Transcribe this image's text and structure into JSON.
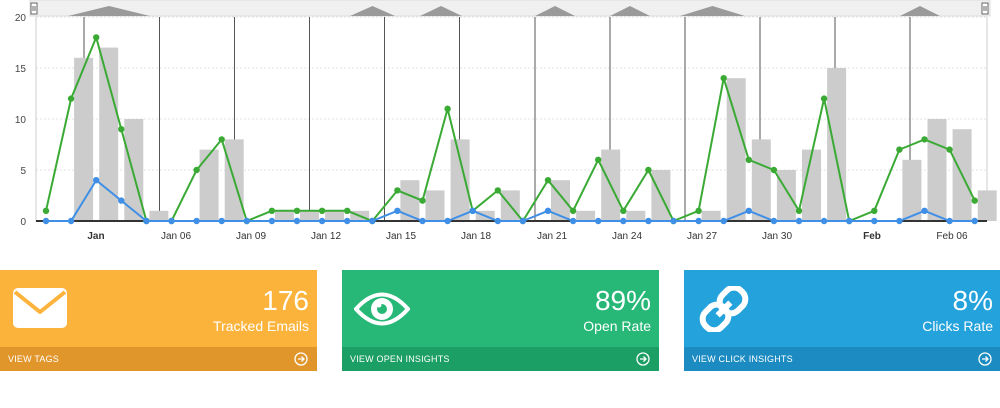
{
  "chart_data": {
    "type": "bar",
    "ylim": [
      0,
      20
    ],
    "yticks": [
      0,
      5,
      10,
      15,
      20
    ],
    "xtick_labels": [
      {
        "label": "Jan",
        "bold": true
      },
      {
        "label": "Jan 06",
        "bold": false
      },
      {
        "label": "Jan 09",
        "bold": false
      },
      {
        "label": "Jan 12",
        "bold": false
      },
      {
        "label": "Jan 15",
        "bold": false
      },
      {
        "label": "Jan 18",
        "bold": false
      },
      {
        "label": "Jan 21",
        "bold": false
      },
      {
        "label": "Jan 24",
        "bold": false
      },
      {
        "label": "Jan 27",
        "bold": false
      },
      {
        "label": "Jan 30",
        "bold": false
      },
      {
        "label": "Feb",
        "bold": true
      },
      {
        "label": "Feb 06",
        "bold": false
      }
    ],
    "series": [
      {
        "values": [
          0,
          16,
          17,
          10,
          1,
          0,
          7,
          8,
          0,
          1,
          1,
          1,
          1,
          0,
          4,
          3,
          8,
          1,
          3,
          0,
          4,
          1,
          7,
          1,
          5,
          0,
          1,
          14,
          8,
          5,
          7,
          15,
          0,
          0,
          6,
          10,
          9,
          3
        ]
      },
      {
        "values": [
          1,
          12,
          18,
          9,
          0,
          0,
          5,
          8,
          0,
          1,
          1,
          1,
          1,
          0,
          3,
          2,
          11,
          1,
          3,
          0,
          4,
          1,
          6,
          1,
          5,
          0,
          1,
          14,
          6,
          5,
          1,
          12,
          0,
          1,
          7,
          8,
          7,
          2
        ]
      },
      {
        "values": [
          0,
          0,
          4,
          2,
          0,
          0,
          0,
          0,
          0,
          0,
          0,
          0,
          0,
          0,
          1,
          0,
          0,
          1,
          0,
          0,
          1,
          0,
          0,
          0,
          0,
          0,
          0,
          0,
          1,
          0,
          0,
          0,
          0,
          0,
          0,
          1,
          0,
          0
        ]
      }
    ],
    "colors": {
      "bars": "#cccccc",
      "line1": "#3aaa35",
      "line2": "#3f8fe6"
    }
  },
  "cards": [
    {
      "value": "176",
      "label": "Tracked Emails",
      "footer": "VIEW TAGS",
      "icon": "envelope-icon",
      "color_top": "#fbb33b",
      "color_foot": "#e0962a"
    },
    {
      "value": "89%",
      "label": "Open Rate",
      "footer": "VIEW OPEN INSIGHTS",
      "icon": "eye-icon",
      "color_top": "#27b877",
      "color_foot": "#1c9f64"
    },
    {
      "value": "8%",
      "label": "Clicks Rate",
      "footer": "VIEW CLICK INSIGHTS",
      "icon": "link-icon",
      "color_top": "#24a2dc",
      "color_foot": "#1b8bc2"
    }
  ]
}
